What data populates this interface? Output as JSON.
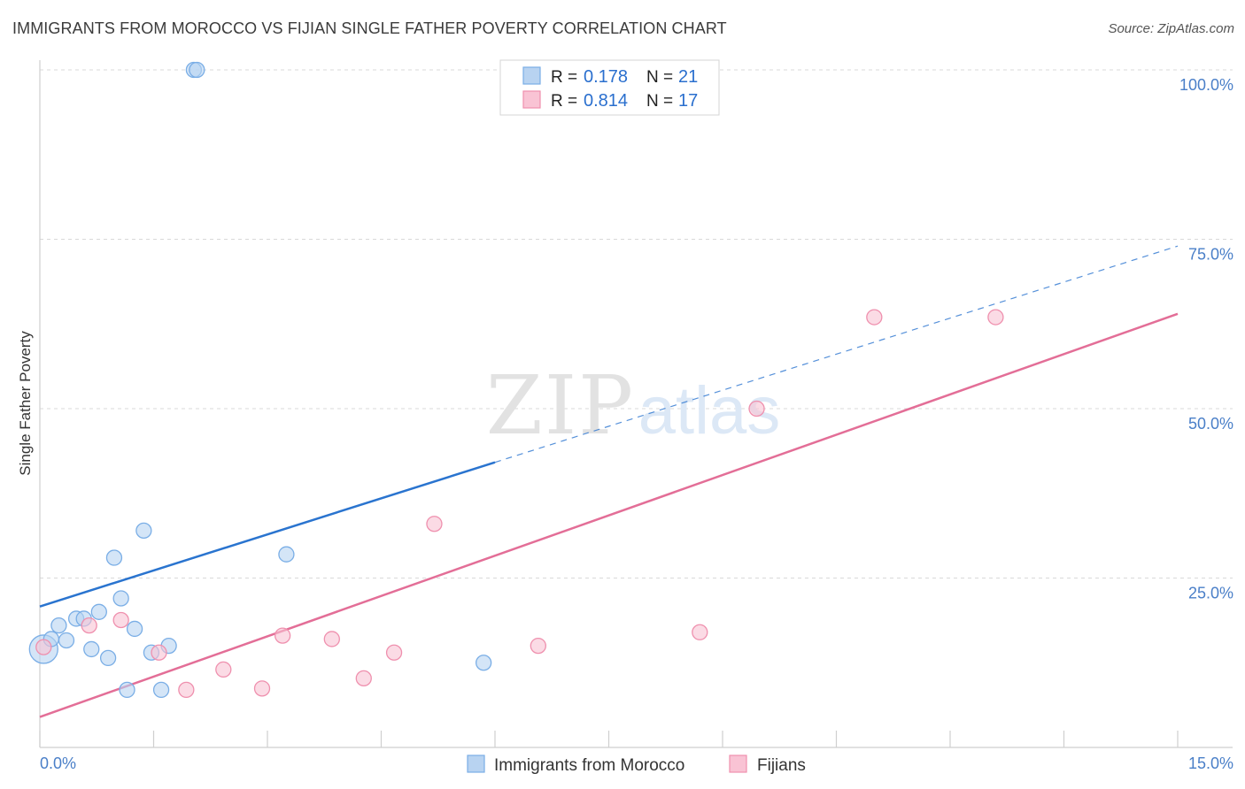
{
  "title": "IMMIGRANTS FROM MOROCCO VS FIJIAN SINGLE FATHER POVERTY CORRELATION CHART",
  "source": "Source: ZipAtlas.com",
  "watermark": {
    "zip": "ZIP",
    "atlas": "atlas"
  },
  "colors": {
    "blue_fill": "#b8d3f1",
    "blue_stroke": "#7aaee6",
    "blue_line": "#2a74cf",
    "pink_fill": "#f9c3d4",
    "pink_stroke": "#ef90ae",
    "pink_line": "#e36e97",
    "axis_label": "#4a7fc8",
    "grid": "#d9d9d9"
  },
  "chart_data": {
    "type": "scatter",
    "xlabel": "",
    "ylabel": "Single Father Poverty",
    "xlim": [
      0,
      15
    ],
    "ylim": [
      0,
      100
    ],
    "x_tick_labels": [
      {
        "value": 0,
        "label": "0.0%"
      },
      {
        "value": 15,
        "label": "15.0%"
      }
    ],
    "y_tick_labels": [
      {
        "value": 25,
        "label": "25.0%"
      },
      {
        "value": 50,
        "label": "50.0%"
      },
      {
        "value": 75,
        "label": "75.0%"
      },
      {
        "value": 100,
        "label": "100.0%"
      }
    ],
    "legend_position": "top-center",
    "series": [
      {
        "name": "Immigrants from Morocco",
        "color_key": "blue",
        "R": "0.178",
        "N": "21",
        "r_label": "R =",
        "n_label": "N =",
        "points": [
          {
            "x": 0.05,
            "y": 14.5,
            "big": true
          },
          {
            "x": 0.15,
            "y": 16.0
          },
          {
            "x": 0.25,
            "y": 18.0
          },
          {
            "x": 0.35,
            "y": 15.8
          },
          {
            "x": 0.48,
            "y": 19.0
          },
          {
            "x": 0.58,
            "y": 19.0
          },
          {
            "x": 0.68,
            "y": 14.5
          },
          {
            "x": 0.78,
            "y": 20.0
          },
          {
            "x": 0.9,
            "y": 13.2
          },
          {
            "x": 0.98,
            "y": 28.0
          },
          {
            "x": 1.07,
            "y": 22.0
          },
          {
            "x": 1.15,
            "y": 8.5
          },
          {
            "x": 1.25,
            "y": 17.5
          },
          {
            "x": 1.37,
            "y": 32.0
          },
          {
            "x": 1.47,
            "y": 14.0
          },
          {
            "x": 1.6,
            "y": 8.5
          },
          {
            "x": 1.7,
            "y": 15.0
          },
          {
            "x": 2.03,
            "y": 100.0
          },
          {
            "x": 2.07,
            "y": 100.0
          },
          {
            "x": 3.25,
            "y": 28.5
          },
          {
            "x": 5.85,
            "y": 12.5
          }
        ],
        "trend": {
          "x0": 0,
          "y0": 20.8,
          "x_solid_end": 6.0,
          "x1": 15,
          "y1": 74.0
        }
      },
      {
        "name": "Fijians",
        "color_key": "pink",
        "R": "0.814",
        "N": "17",
        "r_label": "R =",
        "n_label": "N =",
        "points": [
          {
            "x": 0.05,
            "y": 14.8
          },
          {
            "x": 0.65,
            "y": 18.0
          },
          {
            "x": 1.07,
            "y": 18.8
          },
          {
            "x": 1.57,
            "y": 14.0
          },
          {
            "x": 1.93,
            "y": 8.5
          },
          {
            "x": 2.42,
            "y": 11.5
          },
          {
            "x": 2.93,
            "y": 8.7
          },
          {
            "x": 3.2,
            "y": 16.5
          },
          {
            "x": 3.85,
            "y": 16.0
          },
          {
            "x": 4.27,
            "y": 10.2
          },
          {
            "x": 4.67,
            "y": 14.0
          },
          {
            "x": 5.2,
            "y": 33.0
          },
          {
            "x": 6.57,
            "y": 15.0
          },
          {
            "x": 8.7,
            "y": 17.0
          },
          {
            "x": 9.45,
            "y": 50.0
          },
          {
            "x": 11.0,
            "y": 63.5
          },
          {
            "x": 12.6,
            "y": 63.5
          }
        ],
        "trend": {
          "x0": 0,
          "y0": 4.5,
          "x1": 15,
          "y1": 64.0
        }
      }
    ]
  }
}
